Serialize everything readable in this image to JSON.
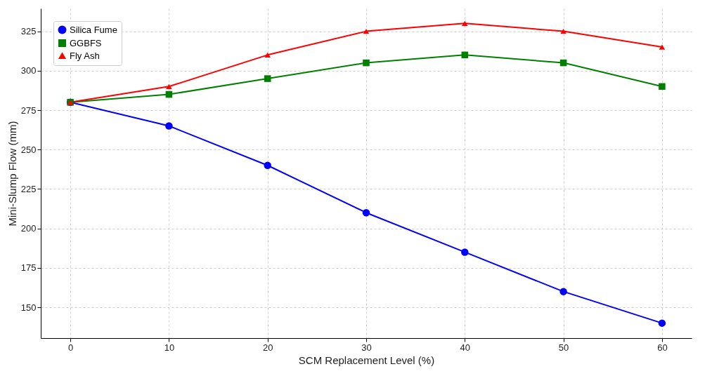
{
  "chart_data": {
    "type": "line",
    "xlabel": "SCM Replacement Level (%)",
    "ylabel": "Mini-Slump Flow (mm)",
    "x": [
      0,
      10,
      20,
      30,
      40,
      50,
      60
    ],
    "series": [
      {
        "name": "Silica Fume",
        "color": "#0000ff",
        "marker": "circle",
        "values": [
          280,
          265,
          240,
          210,
          185,
          160,
          140
        ]
      },
      {
        "name": "GGBFS",
        "color": "#008000",
        "marker": "square",
        "values": [
          280,
          285,
          295,
          305,
          310,
          305,
          290
        ]
      },
      {
        "name": "Fly Ash",
        "color": "#ff0000",
        "marker": "triangle",
        "values": [
          280,
          290,
          310,
          325,
          330,
          325,
          315
        ]
      }
    ],
    "xlim": [
      -3,
      63
    ],
    "xticks": [
      0,
      10,
      20,
      30,
      40,
      50,
      60
    ],
    "ylim": [
      130.5,
      339.5
    ],
    "yticks": [
      150,
      175,
      200,
      225,
      250,
      275,
      300,
      325
    ],
    "grid": true,
    "legend": "top left",
    "line_style": "solid"
  }
}
